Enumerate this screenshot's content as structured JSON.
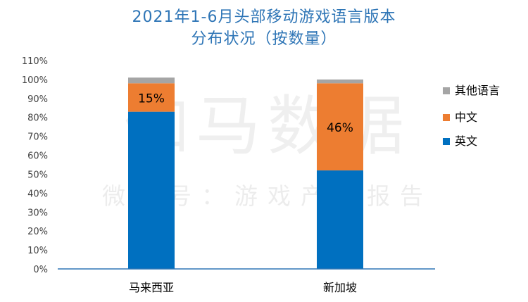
{
  "chart_data": {
    "type": "bar",
    "stacked": true,
    "title": "2021年1-6月头部移动游戏语言版本",
    "subtitle": "分布状况（按数量）",
    "categories": [
      "马来西亚",
      "新加坡"
    ],
    "series": [
      {
        "name": "英文",
        "values": [
          83,
          52
        ],
        "color": "#0070C0"
      },
      {
        "name": "中文",
        "values": [
          15,
          46
        ],
        "color": "#ED7D31"
      },
      {
        "name": "其他语言",
        "values": [
          3,
          2
        ],
        "color": "#A5A5A5"
      }
    ],
    "data_labels": [
      "15%",
      "46%"
    ],
    "ylim": [
      0,
      110
    ],
    "yticks": [
      "0%",
      "10%",
      "20%",
      "30%",
      "40%",
      "50%",
      "60%",
      "70%",
      "80%",
      "90%",
      "100%",
      "110%"
    ],
    "legend_position": "right",
    "grid": false
  },
  "watermark": {
    "line1": "伽马数据",
    "line2": "微信号：游戏产业报告"
  }
}
